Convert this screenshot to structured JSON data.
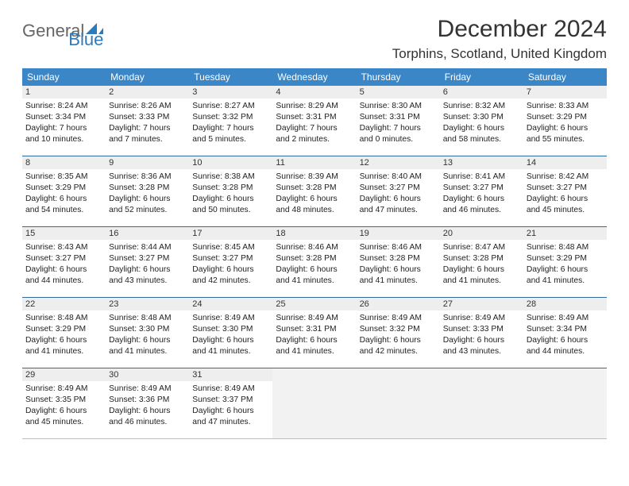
{
  "logo": {
    "text1": "General",
    "text2": "Blue",
    "accent_color": "#2f79b9"
  },
  "title": "December 2024",
  "location": "Torphins, Scotland, United Kingdom",
  "header_bg": "#3b86c6",
  "rule_color": "#2f6aa0",
  "daynum_bg": "#eeeeee",
  "dows": [
    "Sunday",
    "Monday",
    "Tuesday",
    "Wednesday",
    "Thursday",
    "Friday",
    "Saturday"
  ],
  "weeks": [
    [
      {
        "n": "1",
        "sr": "Sunrise: 8:24 AM",
        "ss": "Sunset: 3:34 PM",
        "d1": "Daylight: 7 hours",
        "d2": "and 10 minutes."
      },
      {
        "n": "2",
        "sr": "Sunrise: 8:26 AM",
        "ss": "Sunset: 3:33 PM",
        "d1": "Daylight: 7 hours",
        "d2": "and 7 minutes."
      },
      {
        "n": "3",
        "sr": "Sunrise: 8:27 AM",
        "ss": "Sunset: 3:32 PM",
        "d1": "Daylight: 7 hours",
        "d2": "and 5 minutes."
      },
      {
        "n": "4",
        "sr": "Sunrise: 8:29 AM",
        "ss": "Sunset: 3:31 PM",
        "d1": "Daylight: 7 hours",
        "d2": "and 2 minutes."
      },
      {
        "n": "5",
        "sr": "Sunrise: 8:30 AM",
        "ss": "Sunset: 3:31 PM",
        "d1": "Daylight: 7 hours",
        "d2": "and 0 minutes."
      },
      {
        "n": "6",
        "sr": "Sunrise: 8:32 AM",
        "ss": "Sunset: 3:30 PM",
        "d1": "Daylight: 6 hours",
        "d2": "and 58 minutes."
      },
      {
        "n": "7",
        "sr": "Sunrise: 8:33 AM",
        "ss": "Sunset: 3:29 PM",
        "d1": "Daylight: 6 hours",
        "d2": "and 55 minutes."
      }
    ],
    [
      {
        "n": "8",
        "sr": "Sunrise: 8:35 AM",
        "ss": "Sunset: 3:29 PM",
        "d1": "Daylight: 6 hours",
        "d2": "and 54 minutes."
      },
      {
        "n": "9",
        "sr": "Sunrise: 8:36 AM",
        "ss": "Sunset: 3:28 PM",
        "d1": "Daylight: 6 hours",
        "d2": "and 52 minutes."
      },
      {
        "n": "10",
        "sr": "Sunrise: 8:38 AM",
        "ss": "Sunset: 3:28 PM",
        "d1": "Daylight: 6 hours",
        "d2": "and 50 minutes."
      },
      {
        "n": "11",
        "sr": "Sunrise: 8:39 AM",
        "ss": "Sunset: 3:28 PM",
        "d1": "Daylight: 6 hours",
        "d2": "and 48 minutes."
      },
      {
        "n": "12",
        "sr": "Sunrise: 8:40 AM",
        "ss": "Sunset: 3:27 PM",
        "d1": "Daylight: 6 hours",
        "d2": "and 47 minutes."
      },
      {
        "n": "13",
        "sr": "Sunrise: 8:41 AM",
        "ss": "Sunset: 3:27 PM",
        "d1": "Daylight: 6 hours",
        "d2": "and 46 minutes."
      },
      {
        "n": "14",
        "sr": "Sunrise: 8:42 AM",
        "ss": "Sunset: 3:27 PM",
        "d1": "Daylight: 6 hours",
        "d2": "and 45 minutes."
      }
    ],
    [
      {
        "n": "15",
        "sr": "Sunrise: 8:43 AM",
        "ss": "Sunset: 3:27 PM",
        "d1": "Daylight: 6 hours",
        "d2": "and 44 minutes."
      },
      {
        "n": "16",
        "sr": "Sunrise: 8:44 AM",
        "ss": "Sunset: 3:27 PM",
        "d1": "Daylight: 6 hours",
        "d2": "and 43 minutes."
      },
      {
        "n": "17",
        "sr": "Sunrise: 8:45 AM",
        "ss": "Sunset: 3:27 PM",
        "d1": "Daylight: 6 hours",
        "d2": "and 42 minutes."
      },
      {
        "n": "18",
        "sr": "Sunrise: 8:46 AM",
        "ss": "Sunset: 3:28 PM",
        "d1": "Daylight: 6 hours",
        "d2": "and 41 minutes."
      },
      {
        "n": "19",
        "sr": "Sunrise: 8:46 AM",
        "ss": "Sunset: 3:28 PM",
        "d1": "Daylight: 6 hours",
        "d2": "and 41 minutes."
      },
      {
        "n": "20",
        "sr": "Sunrise: 8:47 AM",
        "ss": "Sunset: 3:28 PM",
        "d1": "Daylight: 6 hours",
        "d2": "and 41 minutes."
      },
      {
        "n": "21",
        "sr": "Sunrise: 8:48 AM",
        "ss": "Sunset: 3:29 PM",
        "d1": "Daylight: 6 hours",
        "d2": "and 41 minutes."
      }
    ],
    [
      {
        "n": "22",
        "sr": "Sunrise: 8:48 AM",
        "ss": "Sunset: 3:29 PM",
        "d1": "Daylight: 6 hours",
        "d2": "and 41 minutes."
      },
      {
        "n": "23",
        "sr": "Sunrise: 8:48 AM",
        "ss": "Sunset: 3:30 PM",
        "d1": "Daylight: 6 hours",
        "d2": "and 41 minutes."
      },
      {
        "n": "24",
        "sr": "Sunrise: 8:49 AM",
        "ss": "Sunset: 3:30 PM",
        "d1": "Daylight: 6 hours",
        "d2": "and 41 minutes."
      },
      {
        "n": "25",
        "sr": "Sunrise: 8:49 AM",
        "ss": "Sunset: 3:31 PM",
        "d1": "Daylight: 6 hours",
        "d2": "and 41 minutes."
      },
      {
        "n": "26",
        "sr": "Sunrise: 8:49 AM",
        "ss": "Sunset: 3:32 PM",
        "d1": "Daylight: 6 hours",
        "d2": "and 42 minutes."
      },
      {
        "n": "27",
        "sr": "Sunrise: 8:49 AM",
        "ss": "Sunset: 3:33 PM",
        "d1": "Daylight: 6 hours",
        "d2": "and 43 minutes."
      },
      {
        "n": "28",
        "sr": "Sunrise: 8:49 AM",
        "ss": "Sunset: 3:34 PM",
        "d1": "Daylight: 6 hours",
        "d2": "and 44 minutes."
      }
    ],
    [
      {
        "n": "29",
        "sr": "Sunrise: 8:49 AM",
        "ss": "Sunset: 3:35 PM",
        "d1": "Daylight: 6 hours",
        "d2": "and 45 minutes."
      },
      {
        "n": "30",
        "sr": "Sunrise: 8:49 AM",
        "ss": "Sunset: 3:36 PM",
        "d1": "Daylight: 6 hours",
        "d2": "and 46 minutes."
      },
      {
        "n": "31",
        "sr": "Sunrise: 8:49 AM",
        "ss": "Sunset: 3:37 PM",
        "d1": "Daylight: 6 hours",
        "d2": "and 47 minutes."
      },
      {
        "empty": true
      },
      {
        "empty": true
      },
      {
        "empty": true
      },
      {
        "empty": true
      }
    ]
  ]
}
